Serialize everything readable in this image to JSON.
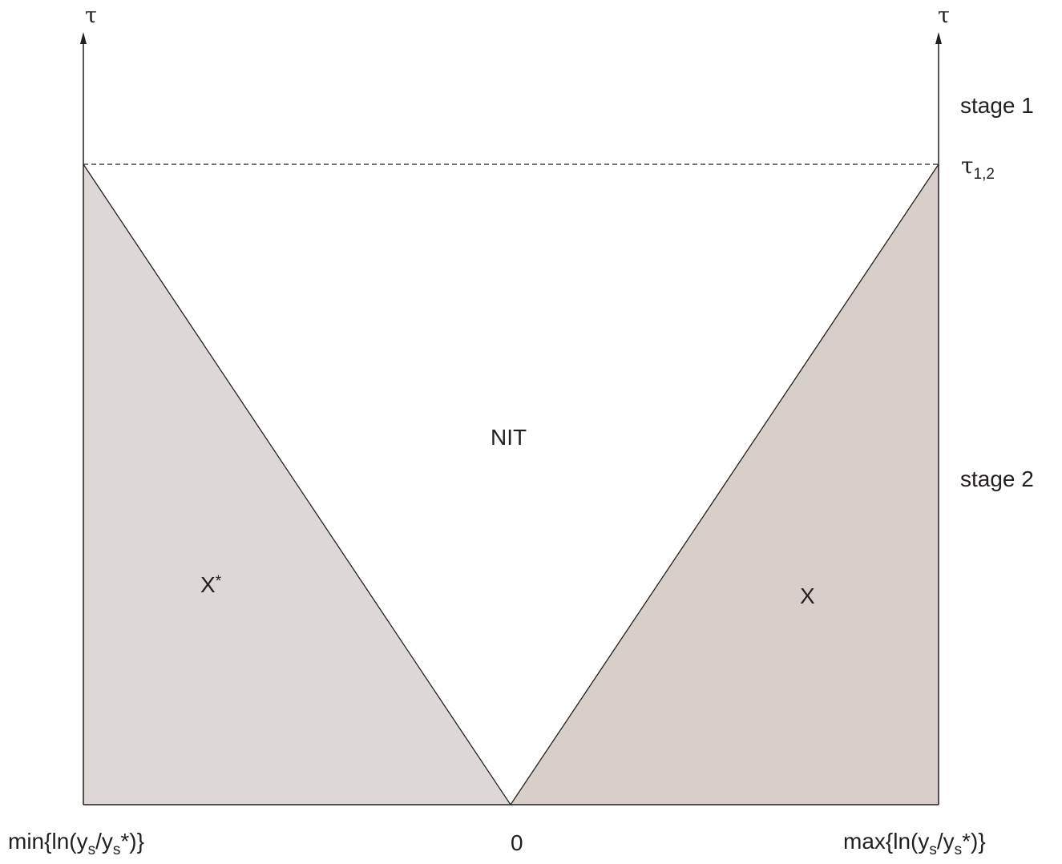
{
  "axes": {
    "left_symbol": "τ",
    "right_symbol": "τ",
    "threshold_symbol": "τ",
    "threshold_subscript": "1,2"
  },
  "stages": {
    "stage1": "stage 1",
    "stage2": "stage 2"
  },
  "regions": {
    "left_label": "X",
    "left_superscript": "*",
    "middle_label": "NIT",
    "right_label": "X",
    "left_fill": "#ddd8d5",
    "right_fill": "#d8cfcb",
    "line_color": "#231f20"
  },
  "x_labels": {
    "min_prefix": "min{ln(y",
    "min_sub1": "s",
    "min_mid": "/y",
    "min_sub2": "s",
    "min_suffix": "*)}",
    "zero": "0",
    "max_prefix": "max{ln(y",
    "max_sub1": "s",
    "max_mid": "/y",
    "max_sub2": "s",
    "max_suffix": "*)}"
  }
}
